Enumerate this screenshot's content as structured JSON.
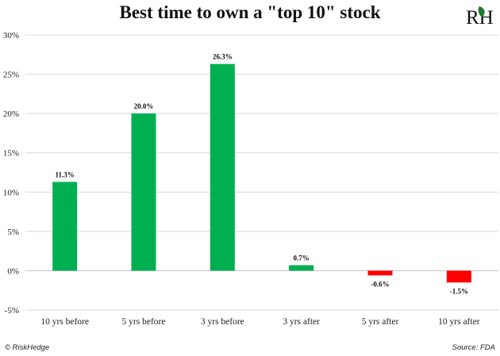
{
  "chart_data": {
    "type": "bar",
    "title": "Best time to own a \"top 10\" stock",
    "xlabel": "",
    "ylabel": "",
    "categories": [
      "10 yrs before",
      "5 yrs before",
      "3 yrs before",
      "3 yrs after",
      "5 yrs after",
      "10 yrs after"
    ],
    "values": [
      11.3,
      20.0,
      26.3,
      0.7,
      -0.6,
      -1.5
    ],
    "data_labels": [
      "11.3%",
      "20.0%",
      "26.3%",
      "0.7%",
      "-0.6%",
      "-1.5%"
    ],
    "ylim": [
      -5,
      30
    ],
    "yticks": [
      -5,
      0,
      5,
      10,
      15,
      20,
      25,
      30
    ],
    "ytick_labels": [
      "-5%",
      "0%",
      "5%",
      "10%",
      "15%",
      "20%",
      "25%",
      "30%"
    ],
    "grid": true,
    "legend": "none",
    "colors": {
      "positive": "#00b050",
      "negative": "#ff0000"
    }
  },
  "footer": {
    "left": "© RiskHedge",
    "right": "Source: FDA"
  },
  "logo": {
    "text": "RH",
    "icon": "leaf-icon",
    "color": "#1a7a2e"
  }
}
